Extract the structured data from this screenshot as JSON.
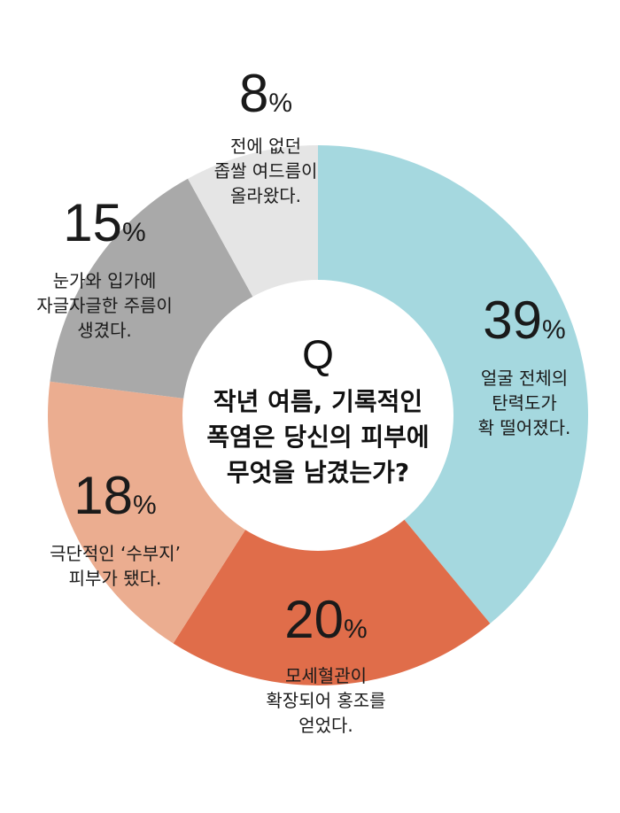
{
  "chart_data": {
    "type": "pie",
    "center_text": {
      "mark": "Q",
      "lines": [
        "작년 여름, 기록적인",
        "폭염은 당신의 피부에",
        "무엇을 남겼는가?"
      ]
    },
    "slices": [
      {
        "value": 39,
        "value_text": "39",
        "unit": "%",
        "label_lines": [
          "얼굴 전체의",
          "탄력도가",
          "확 떨어졌다."
        ],
        "color": "#a5d8df"
      },
      {
        "value": 20,
        "value_text": "20",
        "unit": "%",
        "label_lines": [
          "모세혈관이",
          "확장되어 홍조를",
          "얻었다."
        ],
        "color": "#e06d4a"
      },
      {
        "value": 18,
        "value_text": "18",
        "unit": "%",
        "label_lines": [
          "극단적인 ‘수부지’",
          "피부가 됐다."
        ],
        "color": "#ebad90"
      },
      {
        "value": 15,
        "value_text": "15",
        "unit": "%",
        "label_lines": [
          "눈가와 입가에",
          "자글자글한 주름이",
          "생겼다."
        ],
        "color": "#a9a9a9"
      },
      {
        "value": 8,
        "value_text": "8",
        "unit": "%",
        "label_lines": [
          "전에 없던",
          "좁쌀 여드름이",
          "올라왔다."
        ],
        "color": "#e5e5e5"
      }
    ]
  }
}
